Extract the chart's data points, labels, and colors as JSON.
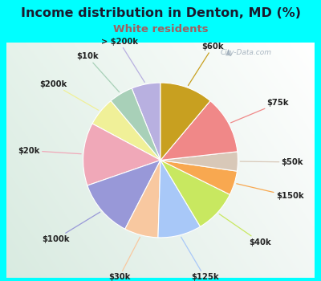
{
  "title": "Income distribution in Denton, MD (%)",
  "subtitle": "White residents",
  "title_color": "#1a1a2e",
  "subtitle_color": "#a06060",
  "background_outer": "#00FFFF",
  "background_chart": "#d8efe8",
  "watermark": "City-Data.com",
  "labels": [
    "> $200k",
    "$10k",
    "$200k",
    "$20k",
    "$100k",
    "$30k",
    "$125k",
    "$40k",
    "$150k",
    "$50k",
    "$75k",
    "$60k"
  ],
  "values": [
    6,
    5,
    6,
    13,
    12,
    7,
    9,
    9,
    5,
    4,
    12,
    11
  ],
  "colors": [
    "#b8b0e0",
    "#a8d0b8",
    "#f0f098",
    "#f0a8b8",
    "#9898d8",
    "#f8c8a0",
    "#a8c8f8",
    "#c8e860",
    "#f8a850",
    "#d8c8b8",
    "#f08888",
    "#c8a020"
  ],
  "label_color": "#222222",
  "line_colors": [
    "#b8b0e0",
    "#a8d0b8",
    "#f0f098",
    "#f0a8b8",
    "#9898d8",
    "#f8c8a0",
    "#a8c8f8",
    "#c8e860",
    "#f8a850",
    "#d8c8b8",
    "#f08888",
    "#c8a020"
  ],
  "start_angle": 90,
  "figsize": [
    4.0,
    3.5
  ],
  "dpi": 100
}
